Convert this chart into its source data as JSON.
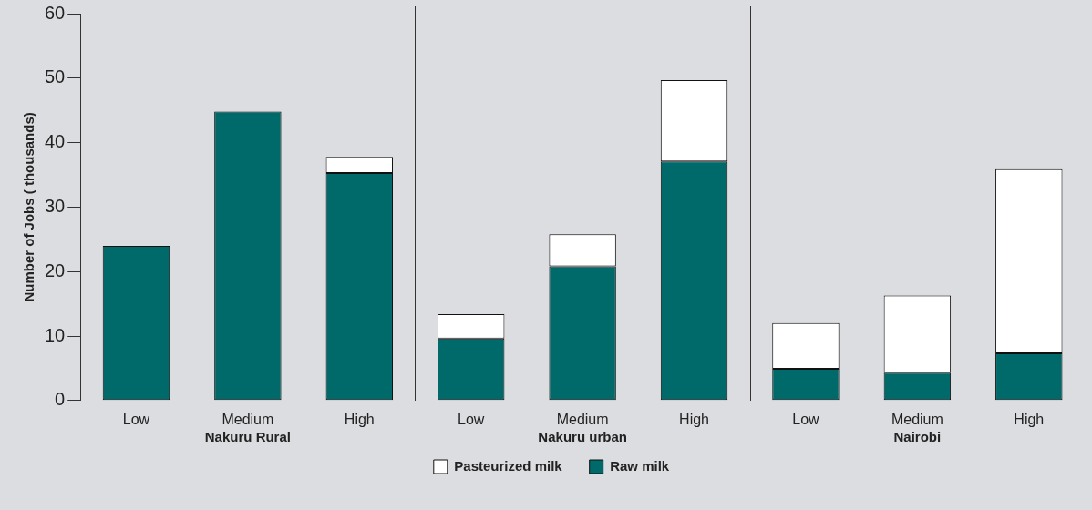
{
  "chart_data": {
    "type": "bar",
    "ylabel": "Number of Jobs ( thousands)",
    "categories": [
      "Low",
      "Medium",
      "High",
      "Low",
      "Medium",
      "High",
      "Low",
      "Medium",
      "High"
    ],
    "series": [
      {
        "name": "Raw milk",
        "color": "#006a6a",
        "values": [
          24,
          44.8,
          35.3,
          9.6,
          20.8,
          37.1,
          4.9,
          4.3,
          7.3
        ]
      },
      {
        "name": "Pasteurized milk",
        "color": "#ffffff",
        "values": [
          0,
          0,
          2.5,
          3.8,
          5.0,
          12.6,
          7.1,
          12.0,
          28.6
        ]
      }
    ],
    "stacked": true,
    "ylim": [
      0,
      60
    ],
    "yticks": [
      0,
      10,
      20,
      30,
      40,
      50,
      60
    ],
    "grid": false,
    "legend": "bottom",
    "annotations": [
      "Nakuru Rural",
      "Nakuru urban",
      "Nairobi"
    ]
  }
}
